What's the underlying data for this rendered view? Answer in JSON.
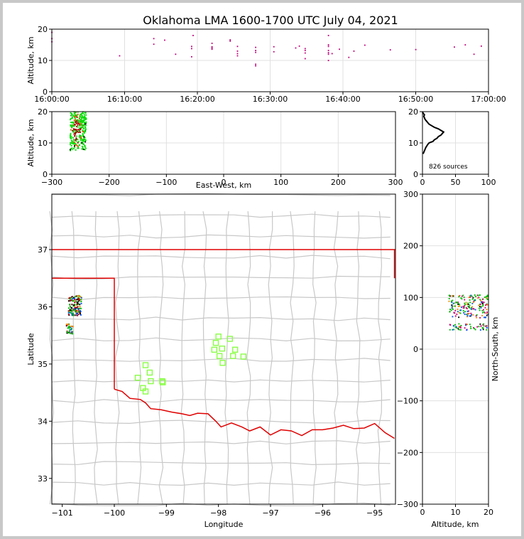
{
  "chart_data": {
    "type": "scatter",
    "title": "Oklahoma LMA 1600-1700 UTC July 04, 2021",
    "source_count_label": "826 sources",
    "panels": {
      "time_height": {
        "xlabel": "",
        "ylabel": "Altitude, km",
        "xlim_minutes": [
          0,
          60
        ],
        "ylim": [
          0,
          20
        ],
        "xticks": [
          "16:00:00",
          "16:10:00",
          "16:20:00",
          "16:30:00",
          "16:40:00",
          "16:50:00",
          "17:00:00"
        ],
        "yticks": [
          0,
          10,
          20
        ],
        "color": "#c0007a",
        "points": [
          [
            0,
            16
          ],
          [
            0,
            17
          ],
          [
            0,
            19
          ],
          [
            9.3,
            11.5
          ],
          [
            14,
            15.2
          ],
          [
            14,
            17
          ],
          [
            15.5,
            16.5
          ],
          [
            17,
            12
          ],
          [
            19.2,
            14.5
          ],
          [
            19.2,
            13.8
          ],
          [
            19.2,
            11.2
          ],
          [
            19.4,
            18
          ],
          [
            22,
            15.5
          ],
          [
            22,
            14.4
          ],
          [
            22,
            14
          ],
          [
            22,
            13.6
          ],
          [
            24.5,
            16.2
          ],
          [
            24.5,
            16.6
          ],
          [
            25.5,
            11.5
          ],
          [
            25.5,
            12.2
          ],
          [
            25.5,
            13
          ],
          [
            25.5,
            14.5
          ],
          [
            28,
            14.2
          ],
          [
            28,
            13.2
          ],
          [
            28,
            12.6
          ],
          [
            28,
            8.8
          ],
          [
            28,
            8.3
          ],
          [
            30.5,
            14.4
          ],
          [
            30.5,
            12.8
          ],
          [
            33.5,
            14
          ],
          [
            34,
            14.6
          ],
          [
            34.8,
            13.8
          ],
          [
            34.8,
            13.2
          ],
          [
            34.8,
            12.4
          ],
          [
            34.8,
            10.6
          ],
          [
            38,
            18
          ],
          [
            38,
            15
          ],
          [
            38,
            14.5
          ],
          [
            38,
            13.2
          ],
          [
            38,
            12.5
          ],
          [
            38,
            12
          ],
          [
            38,
            10
          ],
          [
            38.5,
            12.2
          ],
          [
            39.5,
            13.6
          ],
          [
            40.8,
            11
          ],
          [
            41.5,
            13
          ],
          [
            43,
            14.9
          ],
          [
            46.5,
            13.4
          ],
          [
            50,
            13.5
          ],
          [
            55.3,
            14.3
          ],
          [
            56.8,
            15
          ],
          [
            58,
            12
          ],
          [
            59,
            14.6
          ]
        ]
      },
      "ew_height": {
        "xlabel": "East-West, km",
        "ylabel": "Altitude, km",
        "xlim": [
          -300,
          300
        ],
        "ylim": [
          0,
          20
        ],
        "xticks": [
          -300,
          -200,
          -100,
          0,
          100,
          200,
          300
        ],
        "yticks": [
          0,
          10,
          20
        ],
        "color_early": "#00dd00",
        "color_late": "#aa0000",
        "cluster_x": [
          -268,
          -240
        ],
        "cluster_alt": [
          7.5,
          20
        ]
      },
      "altitude_histogram": {
        "xlim": [
          0,
          100
        ],
        "ylim": [
          0,
          20
        ],
        "xticks": [
          0,
          50,
          100
        ],
        "yticks": [
          0,
          10,
          20
        ],
        "alt": [
          6.5,
          7.5,
          8.5,
          9.5,
          10,
          10.5,
          11,
          11.5,
          12,
          12.5,
          13,
          13.5,
          14,
          14.5,
          15,
          15.5,
          16,
          16.5,
          17,
          17.5,
          18,
          18.5,
          19,
          19.5,
          20
        ],
        "count": [
          1,
          3,
          5,
          8,
          10,
          16,
          18,
          22,
          24,
          28,
          30,
          32,
          28,
          24,
          18,
          14,
          10,
          8,
          6,
          4,
          3,
          2,
          3,
          1,
          0
        ]
      },
      "map": {
        "xlabel": "Longitude",
        "ylabel": "Latitude",
        "xlim": [
          -101.2,
          -94.6
        ],
        "ylim": [
          32.55,
          37.97
        ],
        "xticks": [
          -101,
          -100,
          -99,
          -98,
          -97,
          -96,
          -95
        ],
        "yticks": [
          33,
          34,
          35,
          36,
          37
        ],
        "stations": [
          [
            -99.4,
            34.98
          ],
          [
            -99.32,
            34.85
          ],
          [
            -99.55,
            34.76
          ],
          [
            -99.3,
            34.7
          ],
          [
            -99.45,
            34.58
          ],
          [
            -99.4,
            34.52
          ],
          [
            -99.08,
            34.7
          ],
          [
            -99.07,
            34.68
          ],
          [
            -98.0,
            35.48
          ],
          [
            -98.05,
            35.37
          ],
          [
            -98.08,
            35.25
          ],
          [
            -97.93,
            35.27
          ],
          [
            -97.78,
            35.44
          ],
          [
            -97.68,
            35.25
          ],
          [
            -97.72,
            35.14
          ],
          [
            -97.52,
            35.13
          ],
          [
            -97.98,
            35.14
          ],
          [
            -97.92,
            35.02
          ]
        ],
        "station_color": "#88ff44",
        "border_color": "#e00000",
        "county_color": "#c8c8c8"
      },
      "ns_altitude": {
        "xlabel": "Altitude, km",
        "ylabel": "North-South, km",
        "xlim": [
          0,
          20
        ],
        "ylim": [
          -300,
          300
        ],
        "xticks": [
          0,
          10,
          20
        ],
        "yticks": [
          -300,
          -200,
          -100,
          0,
          100,
          200,
          300
        ]
      }
    }
  }
}
